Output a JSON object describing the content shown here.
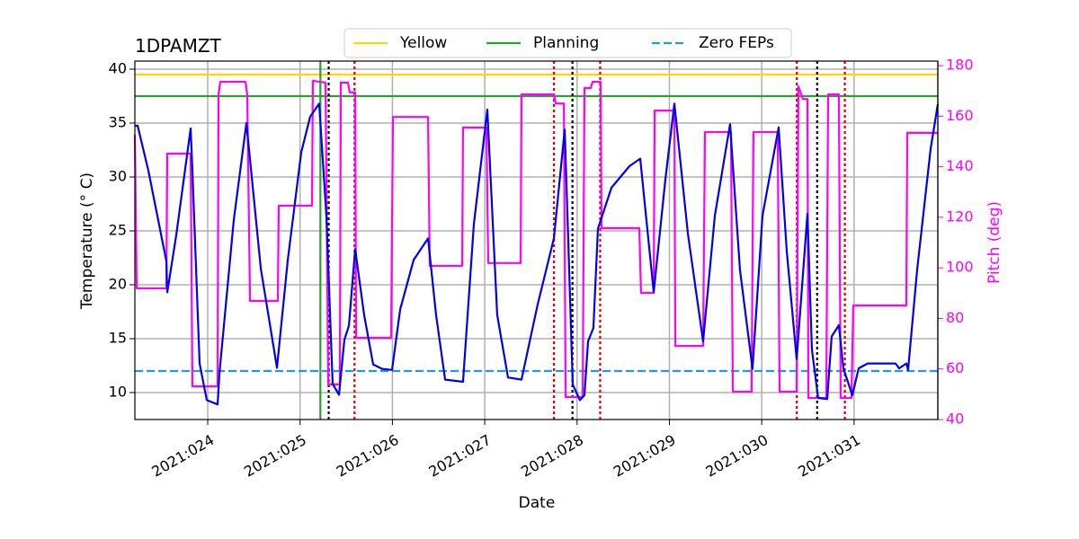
{
  "chart_data": {
    "type": "line",
    "title": "1DPAMZT",
    "xlabel": "Date",
    "ylabel": "Temperature (° C)",
    "y2label": "Pitch (deg)",
    "y2color": "#ff00ff",
    "xlim": [
      23.211,
      31.907
    ],
    "ylim": [
      7.5,
      40.75
    ],
    "y2lim": [
      40,
      181.8
    ],
    "xticks": [
      {
        "value": 24,
        "label": "2021:024"
      },
      {
        "value": 25,
        "label": "2021:025"
      },
      {
        "value": 26,
        "label": "2021:026"
      },
      {
        "value": 27,
        "label": "2021:027"
      },
      {
        "value": 28,
        "label": "2021:028"
      },
      {
        "value": 29,
        "label": "2021:029"
      },
      {
        "value": 30,
        "label": "2021:030"
      },
      {
        "value": 31,
        "label": "2021:031"
      }
    ],
    "yticks": [
      10,
      15,
      20,
      25,
      30,
      35,
      40
    ],
    "y2ticks": [
      40,
      60,
      80,
      100,
      120,
      140,
      160,
      180
    ],
    "grid": true,
    "legend": "upper center",
    "hlines": [
      {
        "name": "Yellow",
        "color": "#ffd700",
        "y": 39.5,
        "style": "solid"
      },
      {
        "name": "Planning",
        "color": "#2ca02c",
        "y": 37.5,
        "style": "solid"
      },
      {
        "name": "Zero FEPs",
        "color": "#2196f3",
        "y": 12,
        "style": "dashed"
      }
    ],
    "vlines": [
      {
        "x": 25.22,
        "color": "#2ca02c",
        "style": "solid"
      },
      {
        "x": 25.31,
        "color": "#000000",
        "style": "dotted"
      },
      {
        "x": 27.95,
        "color": "#000000",
        "style": "dotted"
      },
      {
        "x": 30.6,
        "color": "#000000",
        "style": "dotted"
      },
      {
        "x": 25.59,
        "color": "#e00000",
        "style": "dotted"
      },
      {
        "x": 27.75,
        "color": "#e00000",
        "style": "dotted"
      },
      {
        "x": 28.25,
        "color": "#e00000",
        "style": "dotted"
      },
      {
        "x": 30.38,
        "color": "#e00000",
        "style": "dotted"
      },
      {
        "x": 30.9,
        "color": "#e00000",
        "style": "dotted"
      }
    ],
    "series": [
      {
        "color": "#0000ee",
        "axis": "y",
        "x": [
          23.211,
          23.241,
          23.357,
          23.552,
          23.562,
          23.659,
          23.815,
          23.834,
          23.912,
          23.99,
          24.107,
          24.127,
          24.282,
          24.419,
          24.575,
          24.75,
          24.867,
          25.013,
          25.11,
          25.207,
          25.285,
          25.353,
          25.422,
          25.48,
          25.529,
          25.597,
          25.694,
          25.792,
          25.889,
          25.996,
          26.084,
          26.23,
          26.386,
          26.473,
          26.571,
          26.765,
          26.882,
          27.028,
          27.135,
          27.252,
          27.398,
          27.574,
          27.749,
          27.866,
          27.905,
          27.953,
          28.031,
          28.08,
          28.119,
          28.177,
          28.226,
          28.372,
          28.567,
          28.684,
          28.83,
          28.956,
          29.054,
          29.2,
          29.365,
          29.492,
          29.657,
          29.764,
          29.9,
          30.008,
          30.183,
          30.271,
          30.378,
          30.495,
          30.543,
          30.611,
          30.709,
          30.757,
          30.835,
          30.884,
          30.981,
          31.05,
          31.147,
          31.449,
          31.488,
          31.566,
          31.585,
          31.683,
          31.829,
          31.907
        ],
        "values": [
          34.75,
          34.75,
          30.6,
          22.2,
          19.3,
          24.6,
          34.5,
          30.6,
          12.7,
          9.3,
          8.9,
          11.8,
          26.0,
          35.0,
          21.5,
          12.3,
          22.3,
          32.3,
          35.6,
          36.8,
          26.4,
          10.8,
          9.8,
          14.9,
          16.2,
          23.3,
          17.2,
          12.6,
          12.2,
          12.1,
          17.7,
          22.3,
          24.3,
          17.2,
          11.2,
          11.0,
          25.6,
          36.25,
          17.2,
          11.4,
          11.2,
          18.2,
          24.3,
          34.4,
          24.0,
          10.75,
          9.3,
          9.75,
          14.75,
          16.0,
          25.2,
          29.0,
          31.0,
          31.7,
          19.3,
          29.75,
          36.8,
          24.75,
          14.75,
          26.4,
          34.9,
          21.4,
          12.2,
          26.4,
          34.6,
          23.1,
          13.1,
          26.6,
          14.0,
          9.5,
          9.4,
          15.2,
          16.25,
          12.25,
          9.75,
          12.25,
          12.7,
          12.7,
          12.25,
          12.7,
          12.1,
          21.4,
          32.6,
          36.75
        ]
      },
      {
        "color": "#ff00ff",
        "axis": "y2",
        "x": [
          23.211,
          23.231,
          23.552,
          23.562,
          23.815,
          23.834,
          24.107,
          24.117,
          24.136,
          24.409,
          24.428,
          24.458,
          24.759,
          24.769,
          25.129,
          25.139,
          25.276,
          25.305,
          25.431,
          25.441,
          25.519,
          25.538,
          25.597,
          25.607,
          25.986,
          26.006,
          26.386,
          26.405,
          26.756,
          26.765,
          27.018,
          27.038,
          27.389,
          27.398,
          27.749,
          27.769,
          27.857,
          27.876,
          28.061,
          28.08,
          28.148,
          28.168,
          28.255,
          28.265,
          28.674,
          28.693,
          28.83,
          28.84,
          29.054,
          29.064,
          29.365,
          29.385,
          29.667,
          29.687,
          29.89,
          29.91,
          30.173,
          30.193,
          30.378,
          30.397,
          30.446,
          30.495,
          30.505,
          30.699,
          30.719,
          30.835,
          30.855,
          30.972,
          30.991,
          31.566,
          31.576,
          31.907
        ],
        "values": [
          152.6,
          91.9,
          91.9,
          145.2,
          145.2,
          53.1,
          53.1,
          168.6,
          173.6,
          173.6,
          168.6,
          86.9,
          86.9,
          124.6,
          124.6,
          174.0,
          173.3,
          53.9,
          53.9,
          173.3,
          173.3,
          169.4,
          169.4,
          72.3,
          72.3,
          159.7,
          159.7,
          100.8,
          100.8,
          155.5,
          155.5,
          101.9,
          101.9,
          168.6,
          168.6,
          165.0,
          165.0,
          48.9,
          48.9,
          171.1,
          171.1,
          173.6,
          173.6,
          115.7,
          115.7,
          90.1,
          90.1,
          162.2,
          162.2,
          69.1,
          69.1,
          153.7,
          153.7,
          51.0,
          51.0,
          153.7,
          153.7,
          51.0,
          51.0,
          171.8,
          166.8,
          166.8,
          48.5,
          48.5,
          168.6,
          168.6,
          48.5,
          48.5,
          85.1,
          85.1,
          153.4,
          153.4
        ]
      }
    ]
  }
}
